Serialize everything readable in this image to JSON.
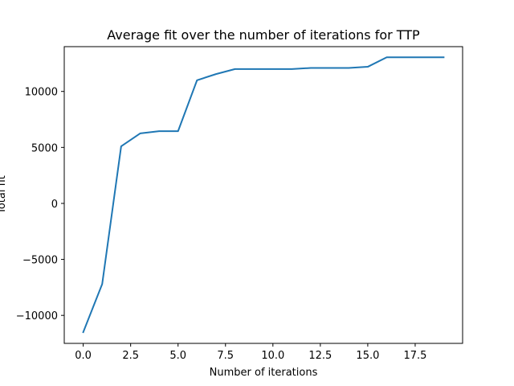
{
  "chart_data": {
    "type": "line",
    "title": "Average fit over the number of iterations for TTP",
    "xlabel": "Number of iterations",
    "ylabel": "Total fit",
    "xlim": [
      -1,
      20
    ],
    "ylim": [
      -12500,
      14000
    ],
    "xticks": [
      0.0,
      2.5,
      5.0,
      7.5,
      10.0,
      12.5,
      15.0,
      17.5
    ],
    "xtick_labels": [
      "0.0",
      "2.5",
      "5.0",
      "7.5",
      "10.0",
      "12.5",
      "15.0",
      "17.5"
    ],
    "yticks": [
      -10000,
      -5000,
      0,
      5000,
      10000
    ],
    "ytick_labels": [
      "−10000",
      "−5000",
      "0",
      "5000",
      "10000"
    ],
    "grid": false,
    "series": [
      {
        "color": "#1f77b4",
        "x": [
          0,
          1,
          2,
          3,
          4,
          5,
          6,
          7,
          8,
          9,
          10,
          11,
          12,
          13,
          14,
          15,
          16,
          17,
          18,
          19
        ],
        "y": [
          -11500,
          -7200,
          5100,
          6250,
          6450,
          6450,
          11000,
          11550,
          12000,
          12000,
          12000,
          12000,
          12100,
          12100,
          12100,
          12200,
          13050,
          13050,
          13050,
          13050
        ]
      }
    ]
  }
}
